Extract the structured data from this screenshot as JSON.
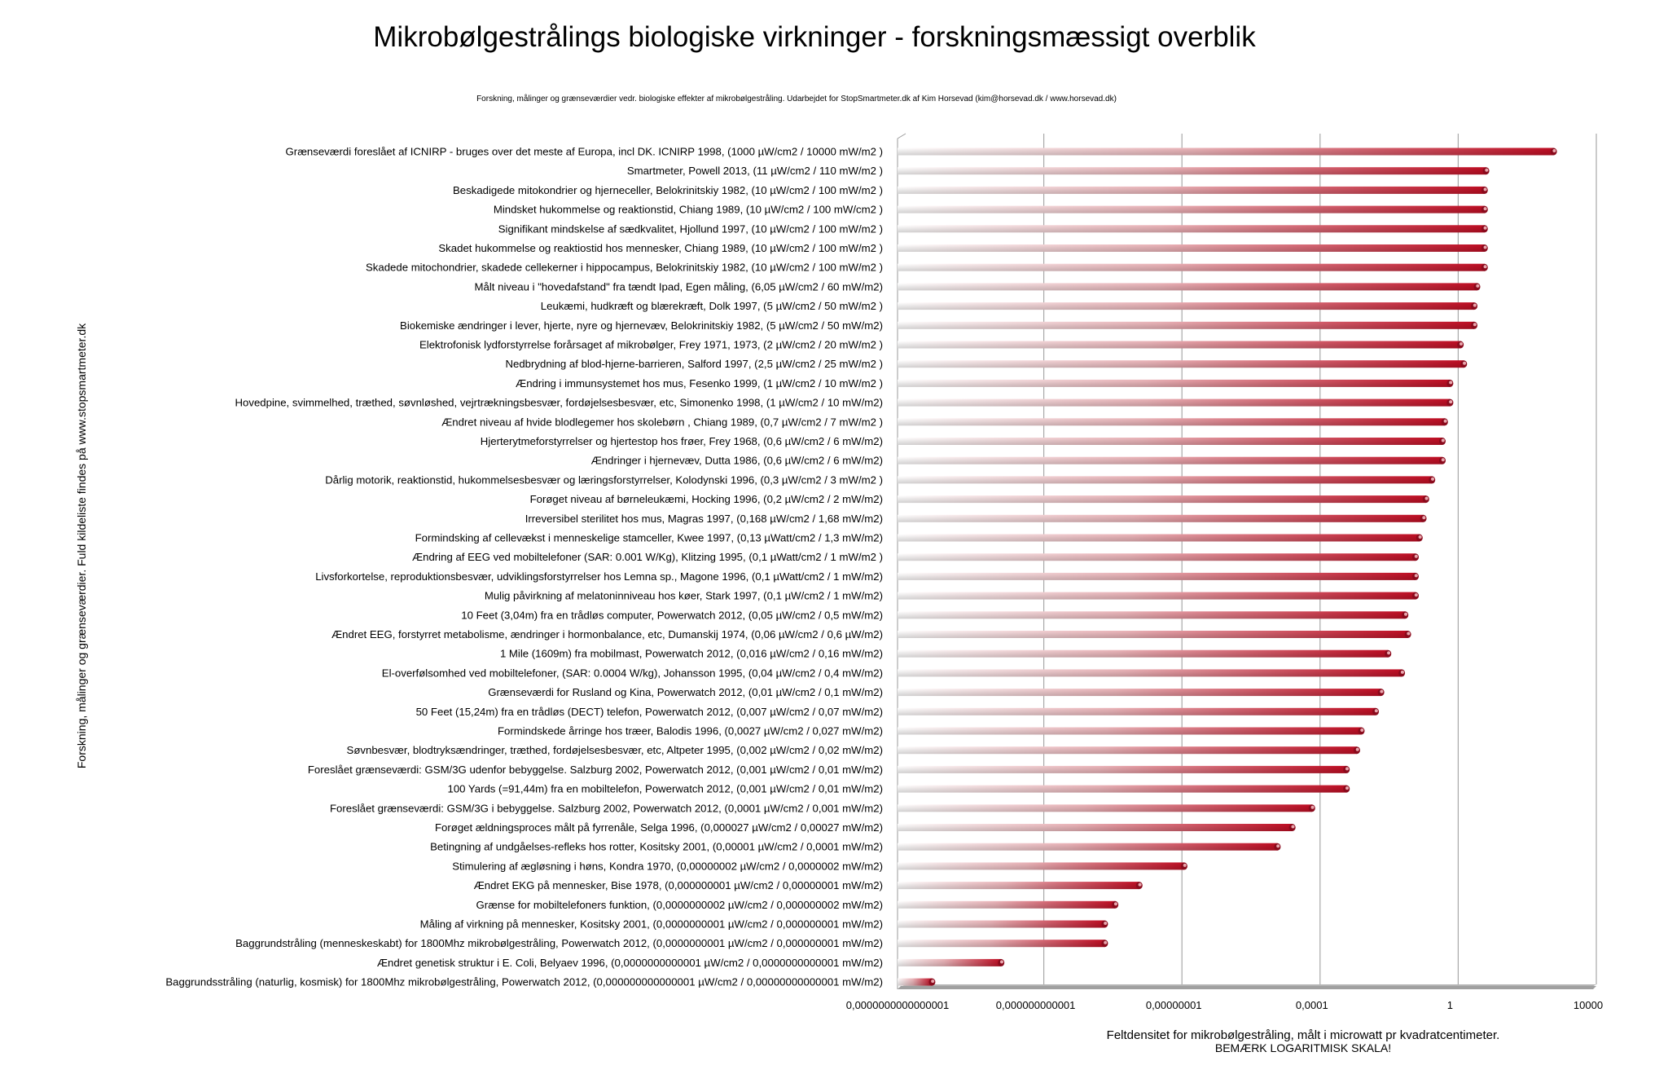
{
  "chart_data": {
    "type": "bar",
    "orientation": "horizontal",
    "title": "Mikrobølgestrålings biologiske virkninger - forskningsmæssigt overblik",
    "subtitle": "Forskning, målinger og grænseværdier vedr. biologiske effekter af mikrobølgestråling.  Udarbejdet for StopSmartmeter.dk  af Kim Horsevad (kim@horsevad.dk  /  www.horsevad.dk)",
    "ylabel": "Forskning, målinger og grænseværdier. Fuld kildeliste findes på www.stopsmartmeter.dk",
    "xlabel": "Feltdensitet for mikrobølgestråling, målt i microwatt pr kvadratcentimeter.",
    "xlabel_note": "BEMÆRK LOGARITMISK SKALA!",
    "x_scale": "log",
    "xlim": [
      1e-16,
      10000
    ],
    "x_ticks": [
      1e-16,
      1e-12,
      1e-08,
      0.0001,
      1,
      10000
    ],
    "x_tick_labels": [
      "0,0000000000000001",
      "0,000000000001",
      "0,00000001",
      "0,0001",
      "1",
      "10000"
    ],
    "grid": true,
    "bar_color": "#c8102e",
    "categories": [
      "Grænseværdi foreslået af ICNIRP - bruges over det meste af Europa, incl DK. ICNIRP 1998, (1000 µW/cm2 / 10000 mW/m2 )",
      "Smartmeter, Powell 2013, (11 µW/cm2 / 110 mW/m2 )",
      "Beskadigede mitokondrier og hjerneceller, Belokrinitskiy 1982, (10 µW/cm2 / 100 mW/m2 )",
      "Mindsket hukommelse og reaktionstid, Chiang 1989, (10 µW/cm2 / 100 mW/cm2  )",
      "Signifikant mindskelse af sædkvalitet, Hjollund 1997, (10 µW/cm2 / 100 mW/m2 )",
      "Skadet hukommelse og reaktiostid hos mennesker, Chiang 1989, (10 µW/cm2 / 100 mW/m2 )",
      "Skadede mitochondrier, skadede cellekerner i hippocampus, Belokrinitskiy 1982, (10 µW/cm2 / 100 mW/m2 )",
      "Målt niveau i \"hovedafstand\" fra tændt Ipad, Egen måling, (6,05 µW/cm2 / 60 mW/m2)",
      "Leukæmi, hudkræft og blærekræft, Dolk 1997, (5 µW/cm2 / 50 mW/m2 )",
      "Biokemiske ændringer i lever, hjerte, nyre og hjernevæv, Belokrinitskiy 1982, (5 µW/cm2 / 50 mW/m2)",
      "Elektrofonisk lydforstyrrelse forårsaget af mikrobølger, Frey 1971, 1973, (2 µW/cm2 / 20 mW/m2 )",
      "Nedbrydning af blod-hjerne-barrieren, Salford 1997, (2,5 µW/cm2 / 25 mW/m2 )",
      "Ændring i immunsystemet hos mus, Fesenko 1999, (1 µW/cm2 / 10 mW/m2 )",
      "Hovedpine, svimmelhed, træthed, søvnløshed, vejrtrækningsbesvær, fordøjelsesbesvær, etc, Simonenko 1998, (1 µW/cm2 / 10 mW/m2)",
      "Ændret niveau af hvide blodlegemer hos skolebørn , Chiang 1989, (0,7 µW/cm2 /  7 mW/m2 )",
      "Hjerterytmeforstyrrelser og hjertestop hos frøer, Frey 1968, (0,6 µW/cm2 / 6 mW/m2)",
      "Ændringer i hjernevæv, Dutta 1986, (0,6 µW/cm2 / 6 mW/m2)",
      "Dårlig motorik, reaktionstid, hukommelsesbesvær og læringsforstyrrelser, Kolodynski 1996, (0,3 µW/cm2 / 3 mW/m2 )",
      "Forøget niveau af børneleukæmi, Hocking 1996, (0,2 µW/cm2 / 2 mW/m2)",
      "Irreversibel sterilitet hos mus, Magras 1997, (0,168 µW/cm2 / 1,68 mW/m2)",
      "Formindsking af cellevækst i menneskelige stamceller, Kwee 1997, (0,13 µWatt/cm2  / 1,3 mW/m2)",
      "Ændring af EEG ved mobiltelefoner (SAR: 0.001 W/Kg), Klitzing 1995, (0,1 µWatt/cm2  / 1 mW/m2 )",
      "Livsforkortelse, reproduktionsbesvær, udviklingsforstyrrelser hos Lemna sp., Magone 1996, (0,1 µWatt/cm2 / 1 mW/m2)",
      "Mulig påvirkning af melatoninniveau hos køer, Stark 1997, (0,1 µW/cm2 / 1 mW/m2)",
      "10 Feet (3,04m) fra en trådløs computer, Powerwatch 2012, (0,05 µW/cm2 / 0,5 mW/m2)",
      "Ændret EEG, forstyrret metabolisme, ændringer i hormonbalance, etc, Dumanskij 1974, (0,06 µW/cm2 / 0,6 µW/m2)",
      "1 Mile (1609m) fra mobilmast, Powerwatch 2012, (0,016 µW/cm2 / 0,16 mW/m2)",
      "El-overfølsomhed ved mobiltelefoner, (SAR: 0.0004 W/kg), Johansson 1995, (0,04 µW/cm2 / 0,4 mW/m2)",
      "Grænseværdi for Rusland og Kina, Powerwatch 2012, (0,01 µW/cm2 / 0,1 mW/m2)",
      "50 Feet (15,24m) fra en trådløs (DECT) telefon, Powerwatch 2012, (0,007 µW/cm2 / 0,07 mW/m2)",
      "Formindskede årringe hos træer, Balodis 1996, (0,0027 µW/cm2 / 0,027 mW/m2)",
      "Søvnbesvær, blodtryksændringer, træthed, fordøjelsesbesvær, etc, Altpeter 1995, (0,002 µW/cm2 / 0,02 mW/m2)",
      "Foreslået grænseværdi: GSM/3G udenfor bebyggelse. Salzburg 2002, Powerwatch 2012, (0,001 µW/cm2  / 0,01 mW/m2)",
      "100 Yards (=91,44m) fra en mobiltelefon, Powerwatch 2012, (0,001 µW/cm2 / 0,01 mW/m2)",
      "Foreslået grænseværdi: GSM/3G i bebyggelse. Salzburg 2002, Powerwatch 2012, (0,0001 µW/cm2  / 0,001 mW/m2)",
      "Forøget ældningsproces målt på fyrrenåle, Selga 1996, (0,000027 µW/cm2 /  0,00027 mW/m2)",
      "Betingning af undgåelses-refleks hos rotter, Kositsky 2001, (0,00001 µW/cm2 / 0,0001 mW/m2)",
      "Stimulering af ægløsning i høns, Kondra 1970, (0,00000002 µW/cm2  / 0,0000002 mW/m2)",
      "Ændret EKG på mennesker, Bise 1978, (0,000000001 µW/cm2 / 0,00000001 mW/m2)",
      "Grænse for mobiltelefoners funktion, (0,0000000002 µW/cm2 / 0,000000002 mW/m2)",
      "Måling af virkning på mennesker, Kositsky 2001, (0,0000000001 µW/cm2 / 0,000000001 mW/m2)",
      "Baggrundstråling (menneskeskabt) for 1800Mhz mikrobølgestråling, Powerwatch 2012, (0,0000000001 µW/cm2 / 0,000000001 mW/m2)",
      "Ændret genetisk struktur i E. Coli, Belyaev 1996, (0,0000000000001 µW/cm2 / 0,0000000000001 mW/m2)",
      "Baggrundsstråling (naturlig, kosmisk) for 1800Mhz mikrobølgestråling, Powerwatch 2012, (0,000000000000001 µW/cm2  / 0,00000000000001 mW/m2)"
    ],
    "values": [
      1000,
      11,
      10,
      10,
      10,
      10,
      10,
      6.05,
      5,
      5,
      2,
      2.5,
      1,
      1,
      0.7,
      0.6,
      0.6,
      0.3,
      0.2,
      0.168,
      0.13,
      0.1,
      0.1,
      0.1,
      0.05,
      0.06,
      0.016,
      0.04,
      0.01,
      0.007,
      0.0027,
      0.002,
      0.001,
      0.001,
      0.0001,
      2.7e-05,
      1e-05,
      2e-08,
      1e-09,
      2e-10,
      1e-10,
      1e-10,
      1e-13,
      1e-15
    ]
  }
}
